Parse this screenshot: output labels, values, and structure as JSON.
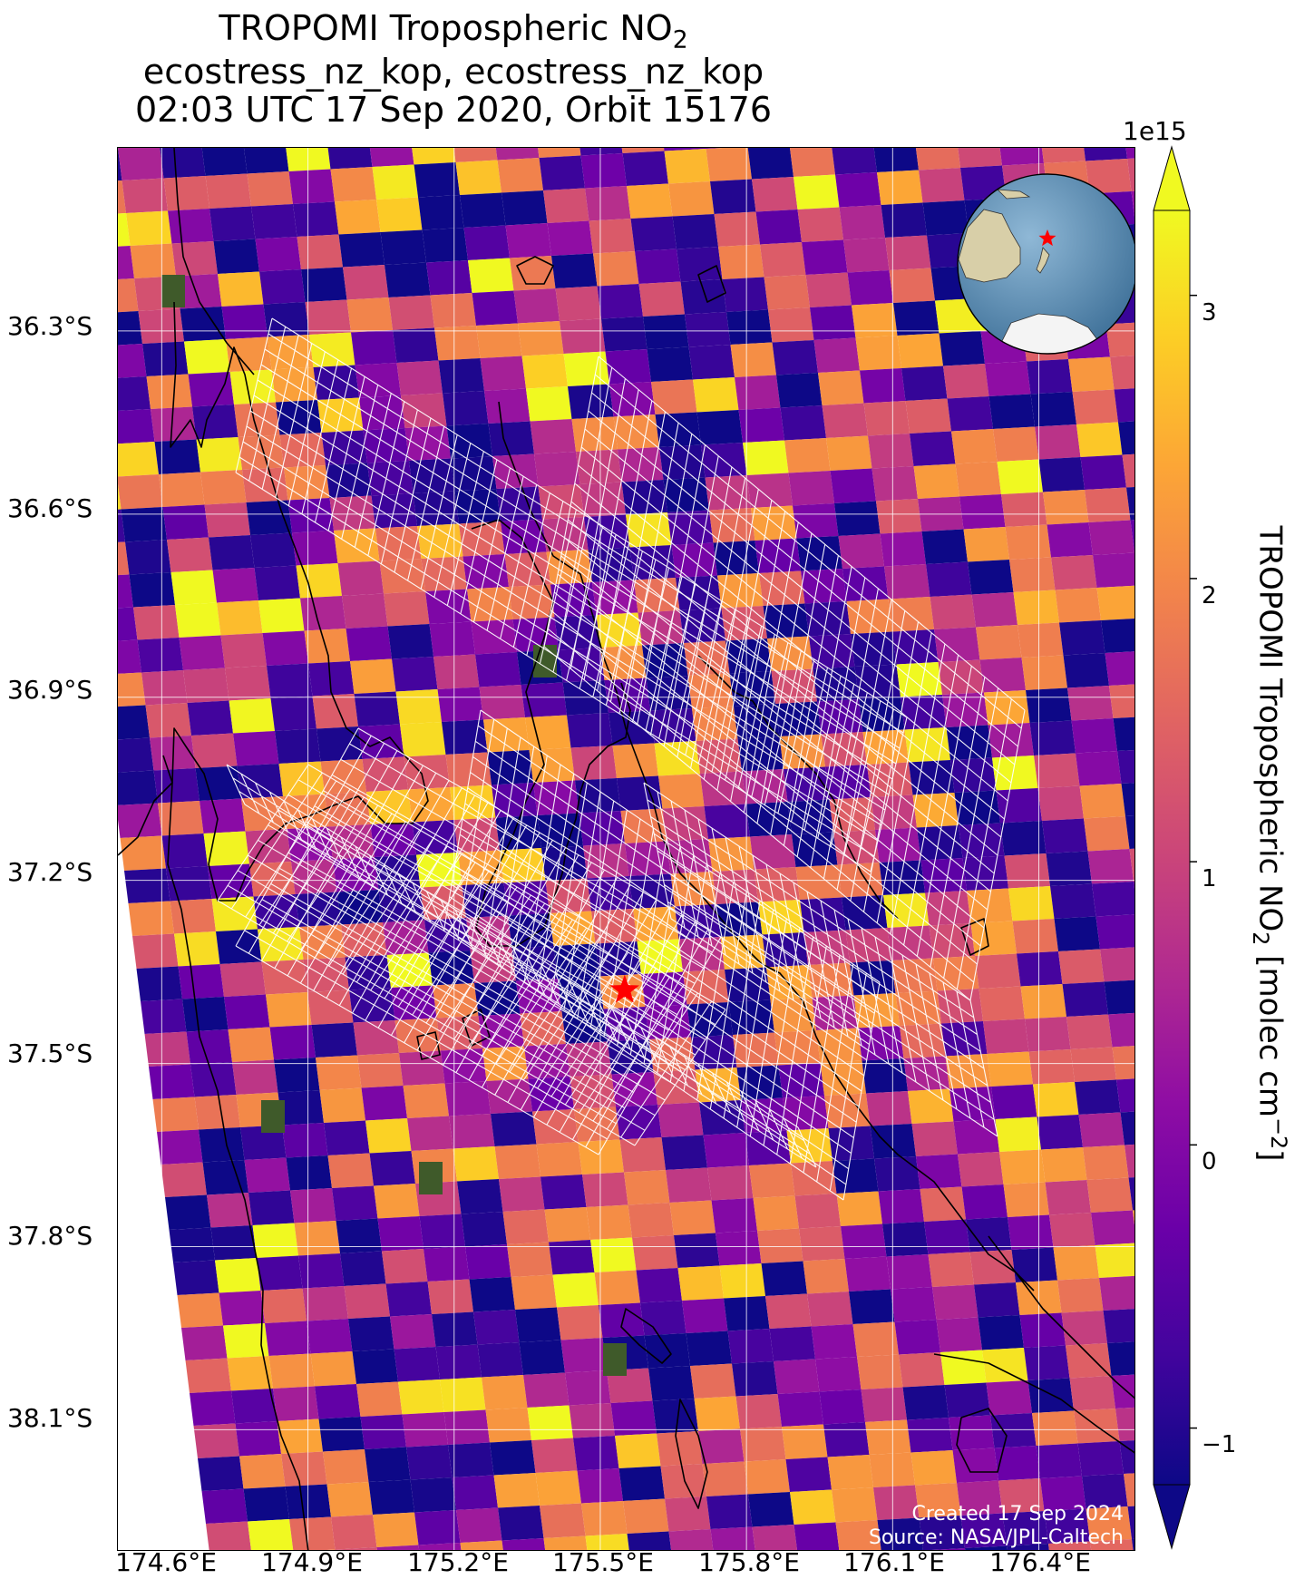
{
  "title": {
    "line1_main": "TROPOMI Tropospheric NO",
    "line1_sub": "2",
    "line2": "ecostress_nz_kop, ecostress_nz_kop",
    "line3": "02:03 UTC 17 Sep 2020, Orbit 15176"
  },
  "map": {
    "lat_labels": [
      "36.3°S",
      "36.6°S",
      "36.9°S",
      "37.2°S",
      "37.5°S",
      "37.8°S",
      "38.1°S"
    ],
    "lon_labels": [
      "174.6°E",
      "174.9°E",
      "175.2°E",
      "175.5°E",
      "175.8°E",
      "176.1°E",
      "176.4°E"
    ],
    "lat_values": [
      -36.3,
      -36.6,
      -36.9,
      -37.2,
      -37.5,
      -37.8,
      -38.1
    ],
    "lon_values": [
      174.6,
      174.9,
      175.2,
      175.5,
      175.8,
      176.1,
      176.4
    ],
    "extent": {
      "lon_min": 174.51,
      "lon_max": 176.6,
      "lat_min": -38.3,
      "lat_max": -36.0
    },
    "marker": {
      "lon": 175.55,
      "lat": -37.38,
      "color": "#ff0000",
      "icon": "star-icon"
    },
    "swath_color": "#ffffff",
    "coastline_color": "#000000",
    "gridline_color": "#ffffff",
    "inset_globe": {
      "ocean_color": "#5b8fb5",
      "land_color": "#d8cfa8",
      "ice_color": "#f4f4f4"
    }
  },
  "credits": {
    "created": "Created 17 Sep 2024",
    "source": "Source: NASA/JPL-Caltech"
  },
  "colorbar": {
    "label_main": "TROPOMI Tropospheric NO",
    "label_sub": "2",
    "label_unit_start": " [molec cm",
    "label_unit_sup": "−2",
    "label_unit_end": "]",
    "offset_text": "1e15",
    "tick_labels": [
      "3",
      "2",
      "1",
      "0",
      "−1"
    ],
    "tick_values": [
      3,
      2,
      1,
      0,
      -1
    ],
    "vmin": -1.2,
    "vmax": 3.3,
    "colormap": "plasma",
    "extend": "both"
  },
  "chart_data": {
    "type": "heatmap",
    "title": "TROPOMI Tropospheric NO2",
    "colorbar_label": "TROPOMI Tropospheric NO2 [molec cm−2]",
    "value_scale": "1e15",
    "vrange": [
      -1.2,
      3.3
    ],
    "x_range": [
      174.51,
      176.6
    ],
    "y_range": [
      -38.3,
      -36.0
    ]
  }
}
